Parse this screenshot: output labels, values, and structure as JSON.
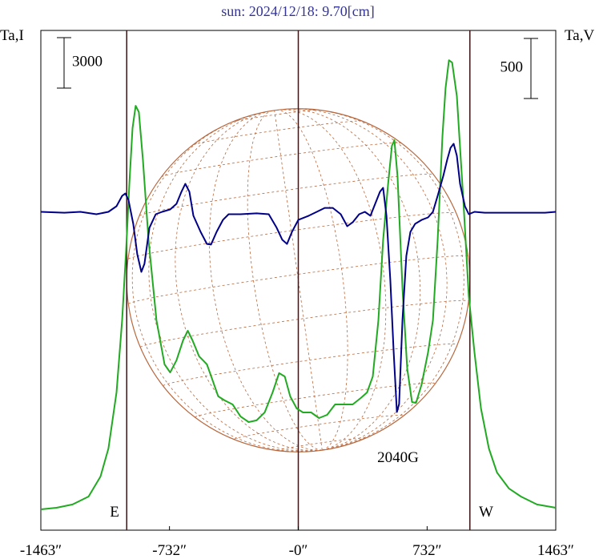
{
  "chart_data": {
    "type": "line",
    "title": "sun: 2024/12/18: 9.70[cm]",
    "ylabel": "Ta,I",
    "y2label": "Ta,V",
    "xlim": [
      -1463,
      1463
    ],
    "xticks": [
      {
        "value": -1463,
        "label": "-1463″"
      },
      {
        "value": -732,
        "label": "-732″"
      },
      {
        "value": 0,
        "label": "-0″"
      },
      {
        "value": 732,
        "label": "732″"
      },
      {
        "value": 1463,
        "label": "1463″"
      }
    ],
    "ylim": [
      -1240,
      28480
    ],
    "y2lim": [
      -2650,
      1510
    ],
    "yscale_bar": 3000,
    "y2scale_bar": 500,
    "vlines": [
      -975,
      0,
      975
    ],
    "annotations": [
      "E",
      "W",
      "2040G"
    ],
    "series": [
      {
        "name": "Ta,I",
        "color": "#22aa22",
        "x": [
          -1463,
          -1374,
          -1283,
          -1192,
          -1124,
          -1079,
          -1033,
          -1001,
          -978,
          -960,
          -942,
          -924,
          -906,
          -883,
          -851,
          -806,
          -760,
          -728,
          -692,
          -655,
          -628,
          -601,
          -564,
          -519,
          -487,
          -455,
          -419,
          -373,
          -328,
          -282,
          -237,
          -191,
          -146,
          -109,
          -77,
          -46,
          -9,
          27,
          73,
          118,
          164,
          209,
          264,
          309,
          355,
          391,
          423,
          455,
          482,
          510,
          532,
          546,
          564,
          592,
          619,
          646,
          669,
          701,
          737,
          765,
          792,
          819,
          837,
          856,
          874,
          901,
          938,
          969,
          1001,
          1038,
          1083,
          1129,
          1197,
          1265,
          1356,
          1463
        ],
        "values": [
          0,
          95,
          290,
          760,
          1950,
          3620,
          6950,
          11240,
          15520,
          19330,
          22670,
          24000,
          23620,
          20760,
          16000,
          11240,
          8620,
          8140,
          8860,
          10050,
          10620,
          10050,
          9100,
          8620,
          7670,
          6720,
          6480,
          6240,
          5520,
          5190,
          5290,
          5760,
          6950,
          8100,
          7900,
          6720,
          6000,
          5760,
          5760,
          5430,
          5620,
          6240,
          6240,
          6240,
          6620,
          6950,
          7900,
          11240,
          16000,
          19330,
          21620,
          21950,
          19810,
          13140,
          8380,
          6380,
          6330,
          7430,
          9330,
          11240,
          16000,
          22190,
          25050,
          26710,
          26570,
          24570,
          18380,
          12670,
          9330,
          6000,
          3620,
          2190,
          1240,
          760,
          290,
          95
        ]
      },
      {
        "name": "Ta,V",
        "color": "#000088",
        "axis": "y2",
        "x": [
          -1463,
          -1329,
          -1238,
          -1147,
          -1079,
          -1033,
          -1001,
          -983,
          -965,
          -938,
          -915,
          -892,
          -874,
          -846,
          -810,
          -774,
          -728,
          -692,
          -664,
          -642,
          -619,
          -596,
          -555,
          -519,
          -496,
          -464,
          -428,
          -396,
          -328,
          -237,
          -168,
          -123,
          -91,
          -64,
          -36,
          0,
          59,
          105,
          150,
          196,
          241,
          278,
          309,
          346,
          378,
          410,
          437,
          464,
          482,
          501,
          523,
          542,
          560,
          573,
          592,
          614,
          637,
          664,
          701,
          737,
          765,
          792,
          824,
          846,
          865,
          883,
          901,
          919,
          947,
          969,
          1001,
          1060,
          1129,
          1265,
          1402,
          1463
        ],
        "values": [
          0,
          -7,
          0,
          -20,
          0,
          47,
          133,
          153,
          100,
          -100,
          -353,
          -500,
          -433,
          -133,
          -20,
          0,
          20,
          67,
          167,
          233,
          167,
          -33,
          -167,
          -267,
          -273,
          -167,
          -67,
          -20,
          -20,
          -13,
          -20,
          -133,
          -233,
          -267,
          -167,
          -67,
          -33,
          0,
          33,
          33,
          -20,
          -120,
          -87,
          -20,
          0,
          -33,
          67,
          167,
          200,
          -33,
          -567,
          -1167,
          -1667,
          -1600,
          -900,
          -367,
          -167,
          -100,
          -67,
          -47,
          0,
          133,
          300,
          433,
          533,
          567,
          467,
          233,
          47,
          -20,
          0,
          -7,
          -7,
          -7,
          -7,
          0
        ]
      }
    ]
  }
}
